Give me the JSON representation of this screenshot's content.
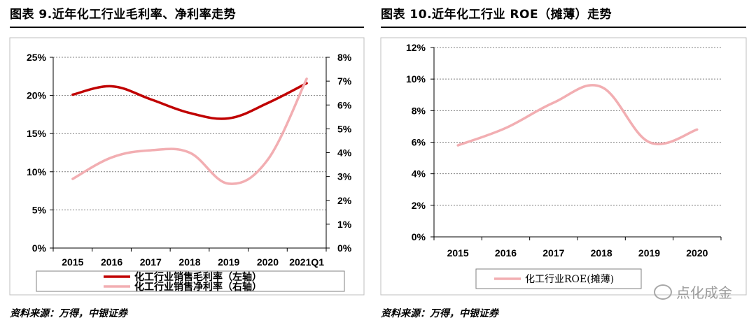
{
  "left_panel": {
    "title": "图表 9.近年化工行业毛利率、净利率走势",
    "source": "资料来源：万得，中银证券"
  },
  "right_panel": {
    "title": "图表 10.近年化工行业 ROE（摊薄）走势",
    "source": "资料来源：万得，中银证券"
  },
  "watermark": "点化成金",
  "colors": {
    "dark_red": "#C00000",
    "pink": "#F2AEB2",
    "grid": "#808080"
  },
  "chart_data": [
    {
      "type": "line",
      "title": "",
      "categories": [
        "2015",
        "2016",
        "2017",
        "2018",
        "2019",
        "2020",
        "2021Q1"
      ],
      "y_left": {
        "ylim": [
          0,
          25
        ],
        "ticks": [
          "0%",
          "5%",
          "10%",
          "15%",
          "20%",
          "25%"
        ]
      },
      "y_right": {
        "ylim": [
          0,
          8
        ],
        "ticks": [
          "0%",
          "1%",
          "2%",
          "3%",
          "4%",
          "5%",
          "6%",
          "7%",
          "8%"
        ]
      },
      "series": [
        {
          "name": "化工行业销售毛利率（左轴）",
          "axis": "left",
          "color": "#C00000",
          "values": [
            20.1,
            21.2,
            19.5,
            17.7,
            17.0,
            19.0,
            21.6
          ]
        },
        {
          "name": "化工行业销售净利率（右轴）",
          "axis": "right",
          "color": "#F2AEB2",
          "values": [
            2.9,
            3.8,
            4.1,
            4.0,
            2.7,
            3.7,
            7.1
          ]
        }
      ],
      "legend_placement": "bottom",
      "grid": true
    },
    {
      "type": "line",
      "title": "",
      "categories": [
        "2015",
        "2016",
        "2017",
        "2018",
        "2019",
        "2020"
      ],
      "ylim": [
        0,
        12
      ],
      "y_ticks": [
        "0%",
        "2%",
        "4%",
        "6%",
        "8%",
        "10%",
        "12%"
      ],
      "series": [
        {
          "name": "化工行业ROE(摊薄)",
          "color": "#F2AEB2",
          "values": [
            5.8,
            6.9,
            8.5,
            9.5,
            6.0,
            6.8
          ]
        }
      ],
      "legend_placement": "bottom",
      "grid": true
    }
  ]
}
